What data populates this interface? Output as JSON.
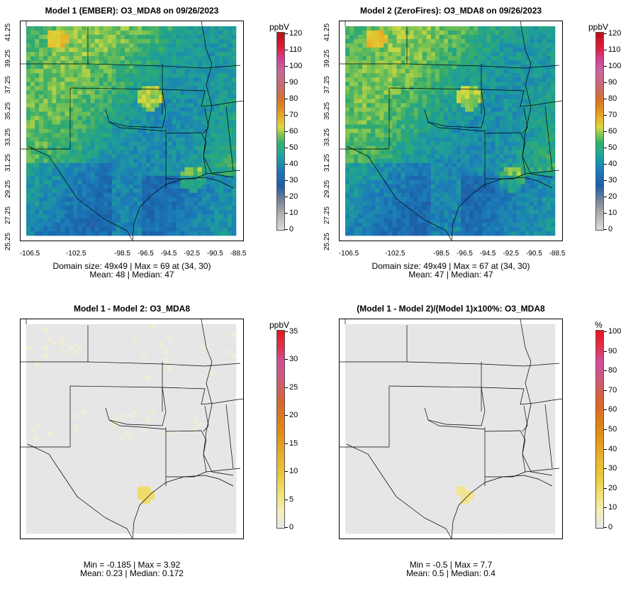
{
  "panels": [
    {
      "title": "Model 1 (EMBER): O3_MDA8 on 09/26/2023",
      "unit": "ppbV",
      "ticks": [
        "120",
        "110",
        "100",
        "90",
        "80",
        "70",
        "60",
        "50",
        "40",
        "30",
        "20",
        "10",
        "0"
      ],
      "colorscale": "concentration",
      "stats_line1": "Domain size: 49x49 | Max = 69 at (34, 30)",
      "stats_line2": "Mean: 48 |  Median: 47"
    },
    {
      "title": "Model 2 (ZeroFires): O3_MDA8 on 09/26/2023",
      "unit": "ppbV",
      "ticks": [
        "120",
        "110",
        "100",
        "90",
        "80",
        "70",
        "60",
        "50",
        "40",
        "30",
        "20",
        "10",
        "0"
      ],
      "colorscale": "concentration",
      "stats_line1": "Domain size: 49x49 | Max = 67 at (34, 30)",
      "stats_line2": "Mean: 47 |  Median: 47"
    },
    {
      "title": "Model 1 - Model 2: O3_MDA8",
      "unit": "ppbV",
      "ticks": [
        "35",
        "30",
        "25",
        "20",
        "15",
        "10",
        "5",
        "0"
      ],
      "colorscale": "difference",
      "stats_line1": "Min = -0.185 | Max = 3.92",
      "stats_line2": "Mean: 0.23 |  Median: 0.172"
    },
    {
      "title": "(Model 1 - Model 2)/(Model 1)x100%: O3_MDA8",
      "unit": "%",
      "ticks": [
        "100",
        "90",
        "80",
        "70",
        "60",
        "50",
        "40",
        "30",
        "20",
        "10",
        "0"
      ],
      "colorscale": "difference",
      "stats_line1": "Min = -0.5 | Max = 7.7",
      "stats_line2": "Mean: 0.5 |  Median: 0.4"
    }
  ],
  "axes": {
    "lat_ticks": [
      "25.25",
      "27.25",
      "29.25",
      "31.25",
      "33.25",
      "35.25",
      "37.25",
      "39.25",
      "41.25"
    ],
    "lon_ticks": [
      "-106.5",
      "-102.5",
      "-98.5",
      "-96.5",
      "-94.5",
      "-92.5",
      "-90.5",
      "-88.5"
    ]
  },
  "colors": {
    "map_gray": "#e6e6e6",
    "border": "#000000"
  }
}
